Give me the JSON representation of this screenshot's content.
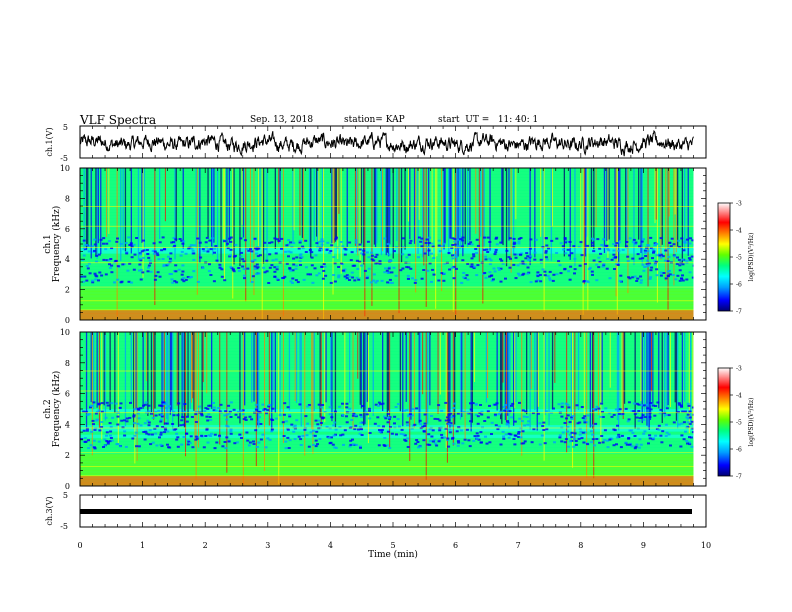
{
  "header": {
    "title": "VLF Spectra",
    "date": "Sep. 13, 2018",
    "station": "station= KAP",
    "start_ut": "start  UT =   11: 40: 1"
  },
  "chart_data": [
    {
      "type": "line",
      "panel": "ch1-waveform",
      "ylabel": "ch.1(V)",
      "ylim": [
        -5,
        5
      ],
      "yticks": [
        "5",
        "-5"
      ],
      "x_range_min": [
        0,
        9.8
      ],
      "note_values": "noisy signal oscillating roughly between -3 and 2 V",
      "color": "#000000"
    },
    {
      "type": "heatmap",
      "panel": "ch1-spectrogram",
      "ylabel": "ch.1 Frequency (kHz)",
      "ylim": [
        0,
        10
      ],
      "yticks": [
        "0",
        "2",
        "4",
        "6",
        "8",
        "10"
      ],
      "colorbar": {
        "label": "log(PSD)(V²/Hz)",
        "range": [
          -7,
          -3
        ],
        "ticks": [
          "-3",
          "-4",
          "-5",
          "-6",
          "-7"
        ]
      }
    },
    {
      "type": "heatmap",
      "panel": "ch2-spectrogram",
      "ylabel": "ch.2 Frequency (kHz)",
      "ylim": [
        0,
        10
      ],
      "yticks": [
        "0",
        "2",
        "4",
        "6",
        "8",
        "10"
      ],
      "colorbar": {
        "label": "log(PSD)(V²/Hz)",
        "range": [
          -7,
          -3
        ],
        "ticks": [
          "-3",
          "-4",
          "-5",
          "-6",
          "-7"
        ]
      }
    },
    {
      "type": "line",
      "panel": "ch3-waveform",
      "ylabel": "ch.3(V)",
      "ylim": [
        -5,
        5
      ],
      "yticks": [
        "5",
        "-5"
      ],
      "constant_value": -1.5,
      "color": "#000000"
    }
  ],
  "xaxis": {
    "label": "Time  (min)",
    "xlim": [
      0,
      10
    ],
    "ticks": [
      "0",
      "1",
      "2",
      "3",
      "4",
      "5",
      "6",
      "7",
      "8",
      "9",
      "10"
    ]
  },
  "colormap": [
    "#000070",
    "#0000ff",
    "#00a0ff",
    "#00ffff",
    "#00ff80",
    "#60ff00",
    "#ffff00",
    "#ff8000",
    "#ff0000",
    "#ff9090",
    "#ffffff"
  ]
}
